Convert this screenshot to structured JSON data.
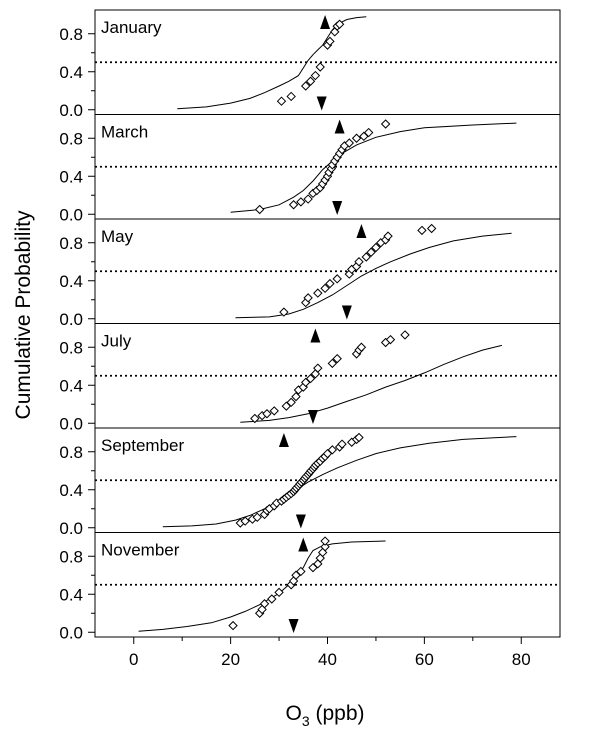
{
  "chart_data": {
    "type": "scatter",
    "ylabel": "Cumulative Probability",
    "xlabel_main": "O",
    "xlabel_sub": "3",
    "xlabel_unit": " (ppb)",
    "xlim": [
      -8,
      88
    ],
    "ylim": [
      -0.05,
      1.05
    ],
    "x_ticks": [
      0,
      20,
      40,
      60,
      80
    ],
    "y_ticks": [
      0.0,
      0.4,
      0.8
    ],
    "y_minor_ticks": [
      0.2,
      0.6
    ],
    "y_tick_labels": [
      "0.0",
      "0.4",
      "0.8"
    ],
    "median_line": 0.5,
    "panels": [
      {
        "name": "January",
        "up_marker_x": 39.5,
        "down_marker_x": 38.8,
        "curve": [
          [
            9,
            0.01
          ],
          [
            15,
            0.03
          ],
          [
            20,
            0.07
          ],
          [
            24,
            0.12
          ],
          [
            27,
            0.18
          ],
          [
            30,
            0.25
          ],
          [
            32,
            0.3
          ],
          [
            34,
            0.36
          ],
          [
            35,
            0.44
          ],
          [
            36,
            0.52
          ],
          [
            37,
            0.58
          ],
          [
            38,
            0.63
          ],
          [
            39,
            0.68
          ],
          [
            40,
            0.76
          ],
          [
            41,
            0.84
          ],
          [
            42,
            0.9
          ],
          [
            44,
            0.95
          ],
          [
            46,
            0.97
          ],
          [
            48,
            0.98
          ]
        ],
        "points": [
          [
            30.5,
            0.09
          ],
          [
            32.5,
            0.14
          ],
          [
            35.5,
            0.25
          ],
          [
            36.5,
            0.3
          ],
          [
            37.5,
            0.36
          ],
          [
            38.5,
            0.45
          ],
          [
            40,
            0.68
          ],
          [
            40.5,
            0.72
          ],
          [
            41.5,
            0.82
          ],
          [
            42,
            0.88
          ],
          [
            42.5,
            0.9
          ]
        ]
      },
      {
        "name": "March",
        "up_marker_x": 42.5,
        "down_marker_x": 42,
        "curve": [
          [
            20,
            0.02
          ],
          [
            26,
            0.05
          ],
          [
            30,
            0.1
          ],
          [
            33,
            0.18
          ],
          [
            35,
            0.25
          ],
          [
            37,
            0.35
          ],
          [
            39,
            0.47
          ],
          [
            41,
            0.56
          ],
          [
            43,
            0.64
          ],
          [
            46,
            0.73
          ],
          [
            50,
            0.81
          ],
          [
            55,
            0.87
          ],
          [
            60,
            0.91
          ],
          [
            70,
            0.94
          ],
          [
            79,
            0.96
          ]
        ],
        "points": [
          [
            26,
            0.05
          ],
          [
            33,
            0.1
          ],
          [
            34.5,
            0.13
          ],
          [
            36,
            0.16
          ],
          [
            37,
            0.22
          ],
          [
            37.8,
            0.25
          ],
          [
            38.5,
            0.28
          ],
          [
            39,
            0.32
          ],
          [
            39.5,
            0.36
          ],
          [
            40,
            0.4
          ],
          [
            40.3,
            0.44
          ],
          [
            40.8,
            0.48
          ],
          [
            41,
            0.52
          ],
          [
            41.5,
            0.56
          ],
          [
            42,
            0.6
          ],
          [
            42.5,
            0.64
          ],
          [
            43,
            0.68
          ],
          [
            43.5,
            0.72
          ],
          [
            44.5,
            0.75
          ],
          [
            46,
            0.8
          ],
          [
            47.5,
            0.82
          ],
          [
            48.5,
            0.86
          ],
          [
            52,
            0.95
          ]
        ]
      },
      {
        "name": "May",
        "up_marker_x": 47,
        "down_marker_x": 44,
        "curve": [
          [
            21,
            0.01
          ],
          [
            28,
            0.02
          ],
          [
            32,
            0.05
          ],
          [
            35,
            0.1
          ],
          [
            38,
            0.17
          ],
          [
            41,
            0.25
          ],
          [
            44,
            0.35
          ],
          [
            47,
            0.45
          ],
          [
            50,
            0.53
          ],
          [
            53,
            0.6
          ],
          [
            57,
            0.68
          ],
          [
            61,
            0.75
          ],
          [
            66,
            0.82
          ],
          [
            72,
            0.87
          ],
          [
            78,
            0.9
          ]
        ],
        "points": [
          [
            31,
            0.07
          ],
          [
            35.5,
            0.17
          ],
          [
            36,
            0.22
          ],
          [
            38,
            0.27
          ],
          [
            39.5,
            0.32
          ],
          [
            40.5,
            0.37
          ],
          [
            42,
            0.42
          ],
          [
            44.5,
            0.47
          ],
          [
            45,
            0.52
          ],
          [
            46,
            0.55
          ],
          [
            46.5,
            0.6
          ],
          [
            48,
            0.65
          ],
          [
            49,
            0.7
          ],
          [
            50,
            0.75
          ],
          [
            51,
            0.8
          ],
          [
            52,
            0.83
          ],
          [
            52.5,
            0.87
          ],
          [
            59.5,
            0.93
          ],
          [
            61.5,
            0.95
          ]
        ]
      },
      {
        "name": "July",
        "up_marker_x": 37.5,
        "down_marker_x": 37,
        "curve": [
          [
            22,
            0.01
          ],
          [
            28,
            0.03
          ],
          [
            32,
            0.06
          ],
          [
            36,
            0.1
          ],
          [
            40,
            0.16
          ],
          [
            44,
            0.23
          ],
          [
            48,
            0.3
          ],
          [
            52,
            0.38
          ],
          [
            56,
            0.45
          ],
          [
            60,
            0.53
          ],
          [
            64,
            0.62
          ],
          [
            68,
            0.7
          ],
          [
            72,
            0.77
          ],
          [
            76,
            0.82
          ]
        ],
        "points": [
          [
            25,
            0.05
          ],
          [
            26.5,
            0.08
          ],
          [
            27.5,
            0.1
          ],
          [
            29,
            0.13
          ],
          [
            31.5,
            0.18
          ],
          [
            32.5,
            0.22
          ],
          [
            33.5,
            0.28
          ],
          [
            34,
            0.35
          ],
          [
            35,
            0.38
          ],
          [
            35.5,
            0.43
          ],
          [
            36.5,
            0.47
          ],
          [
            37.5,
            0.52
          ],
          [
            38,
            0.58
          ],
          [
            41,
            0.63
          ],
          [
            42,
            0.68
          ],
          [
            46,
            0.73
          ],
          [
            46.5,
            0.77
          ],
          [
            47,
            0.8
          ],
          [
            52,
            0.85
          ],
          [
            53,
            0.88
          ],
          [
            56,
            0.93
          ]
        ]
      },
      {
        "name": "September",
        "up_marker_x": 31,
        "down_marker_x": 34.5,
        "curve": [
          [
            6,
            0.01
          ],
          [
            12,
            0.02
          ],
          [
            17,
            0.04
          ],
          [
            21,
            0.08
          ],
          [
            24,
            0.13
          ],
          [
            27,
            0.2
          ],
          [
            30,
            0.28
          ],
          [
            33,
            0.38
          ],
          [
            36,
            0.48
          ],
          [
            39,
            0.56
          ],
          [
            42,
            0.63
          ],
          [
            46,
            0.71
          ],
          [
            50,
            0.78
          ],
          [
            55,
            0.84
          ],
          [
            61,
            0.89
          ],
          [
            68,
            0.93
          ],
          [
            79,
            0.96
          ]
        ],
        "points": [
          [
            22,
            0.05
          ],
          [
            23,
            0.07
          ],
          [
            24.5,
            0.09
          ],
          [
            25.5,
            0.11
          ],
          [
            27,
            0.14
          ],
          [
            27.5,
            0.18
          ],
          [
            28,
            0.2
          ],
          [
            29,
            0.23
          ],
          [
            29.5,
            0.26
          ],
          [
            30.5,
            0.28
          ],
          [
            31,
            0.3
          ],
          [
            31.5,
            0.32
          ],
          [
            32,
            0.34
          ],
          [
            32.5,
            0.36
          ],
          [
            33,
            0.38
          ],
          [
            33.3,
            0.4
          ],
          [
            33.6,
            0.42
          ],
          [
            34,
            0.44
          ],
          [
            34.3,
            0.46
          ],
          [
            34.6,
            0.48
          ],
          [
            35,
            0.5
          ],
          [
            35.3,
            0.52
          ],
          [
            35.6,
            0.54
          ],
          [
            36,
            0.56
          ],
          [
            36.3,
            0.58
          ],
          [
            36.6,
            0.6
          ],
          [
            37,
            0.62
          ],
          [
            37.3,
            0.64
          ],
          [
            37.6,
            0.66
          ],
          [
            38,
            0.68
          ],
          [
            38.5,
            0.7
          ],
          [
            39,
            0.73
          ],
          [
            39.5,
            0.75
          ],
          [
            40,
            0.78
          ],
          [
            41,
            0.82
          ],
          [
            42.5,
            0.85
          ],
          [
            43,
            0.88
          ],
          [
            45,
            0.9
          ],
          [
            46,
            0.93
          ],
          [
            46.5,
            0.95
          ]
        ]
      },
      {
        "name": "November",
        "up_marker_x": 35,
        "down_marker_x": 33,
        "curve": [
          [
            1,
            0.01
          ],
          [
            6,
            0.03
          ],
          [
            11,
            0.06
          ],
          [
            16,
            0.1
          ],
          [
            20,
            0.16
          ],
          [
            23,
            0.22
          ],
          [
            26,
            0.29
          ],
          [
            28,
            0.35
          ],
          [
            30,
            0.41
          ],
          [
            32,
            0.5
          ],
          [
            33.5,
            0.58
          ],
          [
            35,
            0.68
          ],
          [
            36,
            0.78
          ],
          [
            37,
            0.86
          ],
          [
            38.5,
            0.9
          ],
          [
            41,
            0.93
          ],
          [
            45,
            0.95
          ],
          [
            52,
            0.96
          ]
        ],
        "points": [
          [
            20.5,
            0.07
          ],
          [
            26,
            0.2
          ],
          [
            26.5,
            0.24
          ],
          [
            27,
            0.3
          ],
          [
            28.5,
            0.35
          ],
          [
            30,
            0.42
          ],
          [
            32.5,
            0.5
          ],
          [
            33,
            0.54
          ],
          [
            33.5,
            0.6
          ],
          [
            34.5,
            0.64
          ],
          [
            37,
            0.68
          ],
          [
            38,
            0.72
          ],
          [
            38.5,
            0.78
          ],
          [
            39,
            0.84
          ],
          [
            39.5,
            0.9
          ],
          [
            39.5,
            0.96
          ]
        ]
      }
    ]
  }
}
